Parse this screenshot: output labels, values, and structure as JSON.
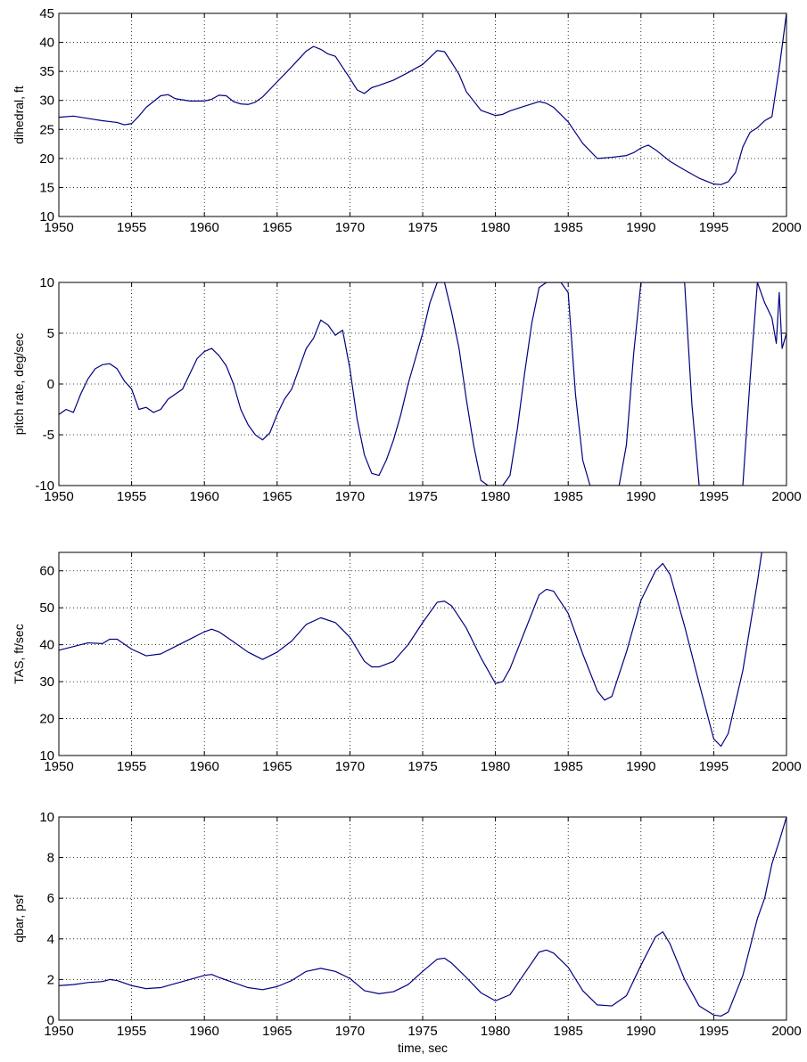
{
  "figure": {
    "line_color": "#00007f",
    "grid_color": "#000000",
    "background": "#ffffff"
  },
  "chart_data": [
    {
      "type": "line",
      "ylabel": "dihedral, ft",
      "xlabel": "",
      "xlim": [
        1950,
        2000
      ],
      "ylim": [
        10,
        45
      ],
      "xticks": [
        1950,
        1955,
        1960,
        1965,
        1970,
        1975,
        1980,
        1985,
        1990,
        1995,
        2000
      ],
      "yticks": [
        10,
        15,
        20,
        25,
        30,
        35,
        40,
        45
      ],
      "grid": true,
      "series": [
        {
          "x": [
            1950,
            1951,
            1952,
            1953,
            1954,
            1954.5,
            1955,
            1955.5,
            1956,
            1956.5,
            1957,
            1957.5,
            1958,
            1959,
            1960,
            1960.5,
            1961,
            1961.5,
            1962,
            1962.5,
            1963,
            1963.5,
            1964,
            1965,
            1966,
            1967,
            1967.5,
            1968,
            1968.5,
            1969,
            1970,
            1970.5,
            1971,
            1971.5,
            1972,
            1973,
            1974,
            1975,
            1976,
            1976.5,
            1977,
            1977.5,
            1978,
            1979,
            1980,
            1980.5,
            1981,
            1982,
            1983,
            1983.5,
            1984,
            1985,
            1986,
            1987,
            1988,
            1989,
            1989.5,
            1990,
            1990.5,
            1991,
            1992,
            1993,
            1994,
            1995,
            1995.5,
            1996,
            1996.5,
            1997,
            1997.5,
            1998,
            1998.5,
            1999,
            1999.5,
            2000
          ],
          "y": [
            27.1,
            27.3,
            26.9,
            26.5,
            26.2,
            25.8,
            26.0,
            27.3,
            28.8,
            29.8,
            30.8,
            31.0,
            30.3,
            29.9,
            29.9,
            30.2,
            30.9,
            30.8,
            29.8,
            29.4,
            29.3,
            29.7,
            30.6,
            33.2,
            35.8,
            38.5,
            39.3,
            38.8,
            38.0,
            37.6,
            33.8,
            31.8,
            31.2,
            32.2,
            32.6,
            33.5,
            34.8,
            36.2,
            38.6,
            38.4,
            36.5,
            34.5,
            31.5,
            28.3,
            27.4,
            27.6,
            28.2,
            29.0,
            29.8,
            29.5,
            28.8,
            26.3,
            22.6,
            20.0,
            20.2,
            20.5,
            21.0,
            21.8,
            22.3,
            21.5,
            19.5,
            18.0,
            16.6,
            15.6,
            15.5,
            16.0,
            17.6,
            22.0,
            24.5,
            25.3,
            26.5,
            27.2,
            35.5,
            45.0
          ]
        }
      ]
    },
    {
      "type": "line",
      "ylabel": "pitch rate, deg/sec",
      "xlabel": "",
      "xlim": [
        1950,
        2000
      ],
      "ylim": [
        -10,
        10
      ],
      "xticks": [
        1950,
        1955,
        1960,
        1965,
        1970,
        1975,
        1980,
        1985,
        1990,
        1995,
        2000
      ],
      "yticks": [
        -10,
        -5,
        0,
        5,
        10
      ],
      "grid": true,
      "series": [
        {
          "x": [
            1950,
            1950.5,
            1951,
            1951.5,
            1952,
            1952.5,
            1953,
            1953.5,
            1954,
            1954.5,
            1955,
            1955.5,
            1956,
            1956.5,
            1957,
            1957.5,
            1958,
            1958.5,
            1959,
            1959.5,
            1960,
            1960.5,
            1961,
            1961.5,
            1962,
            1962.5,
            1963,
            1963.5,
            1964,
            1964.5,
            1965,
            1965.5,
            1966,
            1966.5,
            1967,
            1967.5,
            1968,
            1968.5,
            1969,
            1969.5,
            1970,
            1970.5,
            1971,
            1971.5,
            1972,
            1972.5,
            1973,
            1973.5,
            1974,
            1974.5,
            1975,
            1975.5,
            1976,
            1976.5,
            1977,
            1977.5,
            1978,
            1978.5,
            1979,
            1979.5,
            1980,
            1980.5,
            1981,
            1981.5,
            1982,
            1982.5,
            1983,
            1983.5,
            1984,
            1984.5,
            1985,
            1985.5,
            1986,
            1986.5,
            1987,
            1987.5,
            1988,
            1988.5,
            1989,
            1989.5,
            1990,
            1990.5,
            1991,
            1991.5,
            1992,
            1992.5,
            1993,
            1993.5,
            1994,
            1994.5,
            1995,
            1995.5,
            1996,
            1996.5,
            1997,
            1997.5,
            1998,
            1998.5,
            1999,
            1999.3,
            1999.5,
            1999.7,
            2000
          ],
          "y": [
            -3.0,
            -2.5,
            -2.8,
            -1.0,
            0.5,
            1.5,
            1.9,
            2.0,
            1.5,
            0.3,
            -0.5,
            -2.5,
            -2.3,
            -2.8,
            -2.5,
            -1.5,
            -1.0,
            -0.5,
            1.0,
            2.5,
            3.2,
            3.5,
            2.8,
            1.8,
            0.0,
            -2.5,
            -4.0,
            -5.0,
            -5.5,
            -4.8,
            -3.0,
            -1.5,
            -0.5,
            1.5,
            3.5,
            4.5,
            6.3,
            5.8,
            4.8,
            5.3,
            1.5,
            -3.5,
            -7.0,
            -8.8,
            -9.0,
            -7.5,
            -5.5,
            -3.0,
            0.0,
            2.5,
            5.0,
            8.0,
            10.0,
            10.0,
            7.0,
            3.5,
            -1.5,
            -6.0,
            -9.5,
            -10.0,
            -10.0,
            -10.0,
            -9.0,
            -4.5,
            1.0,
            6.0,
            9.5,
            10.0,
            10.0,
            10.0,
            9.0,
            -1.0,
            -7.5,
            -10.0,
            -10.0,
            -10.0,
            -10.0,
            -10.0,
            -6.0,
            3.0,
            10.0,
            10.0,
            10.0,
            10.0,
            10.0,
            10.0,
            10.0,
            -2.0,
            -10.0,
            -10.0,
            -10.0,
            -10.0,
            -10.0,
            -10.0,
            -10.0,
            0.5,
            10.0,
            8.0,
            6.5,
            4.0,
            9.0,
            3.5,
            5.0
          ]
        }
      ]
    },
    {
      "type": "line",
      "ylabel": "TAS, ft/sec",
      "xlabel": "",
      "xlim": [
        1950,
        2000
      ],
      "ylim": [
        10,
        65
      ],
      "xticks": [
        1950,
        1955,
        1960,
        1965,
        1970,
        1975,
        1980,
        1985,
        1990,
        1995,
        2000
      ],
      "yticks": [
        10,
        20,
        30,
        40,
        50,
        60
      ],
      "grid": true,
      "series": [
        {
          "x": [
            1950,
            1951,
            1952,
            1953,
            1953.5,
            1954,
            1955,
            1956,
            1957,
            1958,
            1959,
            1960,
            1960.5,
            1961,
            1962,
            1963,
            1964,
            1965,
            1966,
            1967,
            1968,
            1969,
            1970,
            1971,
            1971.5,
            1972,
            1973,
            1974,
            1975,
            1976,
            1976.5,
            1977,
            1978,
            1979,
            1980,
            1980.5,
            1981,
            1982,
            1983,
            1983.5,
            1984,
            1985,
            1986,
            1987,
            1987.5,
            1988,
            1989,
            1990,
            1991,
            1991.5,
            1992,
            1993,
            1994,
            1995,
            1995.5,
            1996,
            1997,
            1998,
            1998.3
          ],
          "y": [
            38.5,
            39.5,
            40.5,
            40.3,
            41.5,
            41.5,
            38.8,
            37.0,
            37.5,
            39.5,
            41.5,
            43.5,
            44.2,
            43.5,
            40.8,
            38.0,
            36.0,
            38.0,
            41.0,
            45.5,
            47.3,
            46.0,
            42.0,
            35.5,
            34.0,
            34.0,
            35.5,
            40.0,
            46.0,
            51.5,
            51.8,
            50.5,
            44.5,
            36.5,
            29.5,
            30.0,
            33.5,
            43.5,
            53.5,
            55.0,
            54.5,
            48.5,
            37.5,
            27.5,
            25.0,
            26.0,
            38.0,
            52.0,
            60.0,
            62.0,
            59.0,
            45.0,
            29.5,
            14.5,
            12.5,
            16.0,
            33.0,
            57.0,
            65.0
          ]
        }
      ]
    },
    {
      "type": "line",
      "ylabel": "qbar, psf",
      "xlabel": "time, sec",
      "xlim": [
        1950,
        2000
      ],
      "ylim": [
        0,
        10
      ],
      "xticks": [
        1950,
        1955,
        1960,
        1965,
        1970,
        1975,
        1980,
        1985,
        1990,
        1995,
        2000
      ],
      "yticks": [
        0,
        2,
        4,
        6,
        8,
        10
      ],
      "grid": true,
      "series": [
        {
          "x": [
            1950,
            1951,
            1952,
            1953,
            1953.5,
            1954,
            1955,
            1956,
            1957,
            1958,
            1959,
            1960,
            1960.5,
            1961,
            1962,
            1963,
            1964,
            1965,
            1966,
            1967,
            1968,
            1969,
            1970,
            1971,
            1972,
            1973,
            1974,
            1975,
            1976,
            1976.5,
            1977,
            1978,
            1979,
            1980,
            1981,
            1982,
            1983,
            1983.5,
            1984,
            1985,
            1986,
            1987,
            1988,
            1989,
            1990,
            1991,
            1991.5,
            1992,
            1993,
            1994,
            1995,
            1995.5,
            1996,
            1997,
            1998,
            1998.5,
            1999,
            1999.5,
            2000
          ],
          "y": [
            1.7,
            1.75,
            1.85,
            1.9,
            2.0,
            1.95,
            1.7,
            1.55,
            1.6,
            1.8,
            2.0,
            2.2,
            2.25,
            2.1,
            1.85,
            1.6,
            1.5,
            1.65,
            1.95,
            2.4,
            2.55,
            2.4,
            2.05,
            1.45,
            1.3,
            1.4,
            1.75,
            2.4,
            3.0,
            3.05,
            2.8,
            2.1,
            1.35,
            0.95,
            1.25,
            2.3,
            3.35,
            3.45,
            3.3,
            2.6,
            1.45,
            0.75,
            0.7,
            1.2,
            2.7,
            4.1,
            4.35,
            3.75,
            2.0,
            0.7,
            0.25,
            0.2,
            0.4,
            2.2,
            5.0,
            6.0,
            7.7,
            8.8,
            10.0
          ]
        }
      ]
    }
  ]
}
